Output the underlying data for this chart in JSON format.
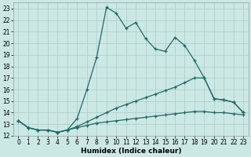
{
  "xlabel": "Humidex (Indice chaleur)",
  "bg_color": "#cce8e5",
  "grid_color": "#b0d0cd",
  "line_color": "#1e6b65",
  "xlim": [
    -0.5,
    23.5
  ],
  "ylim": [
    12,
    23.5
  ],
  "xticks": [
    0,
    1,
    2,
    3,
    4,
    5,
    6,
    7,
    8,
    9,
    10,
    11,
    12,
    13,
    14,
    15,
    16,
    17,
    18,
    19,
    20,
    21,
    22,
    23
  ],
  "yticks": [
    12,
    13,
    14,
    15,
    16,
    17,
    18,
    19,
    20,
    21,
    22,
    23
  ],
  "line1_x": [
    0,
    1,
    2,
    3,
    4,
    5,
    6,
    7,
    8,
    9,
    10,
    11,
    12,
    13,
    14,
    15,
    16,
    17,
    18,
    19,
    20,
    21,
    22,
    23
  ],
  "line1_y": [
    13.3,
    12.7,
    12.5,
    12.5,
    12.3,
    12.5,
    13.5,
    16.0,
    18.8,
    23.1,
    22.6,
    21.3,
    21.8,
    20.4,
    19.5,
    19.3,
    20.5,
    19.8,
    18.5,
    17.0,
    15.2,
    15.1,
    14.9,
    14.0
  ],
  "line2_x": [
    0,
    1,
    2,
    3,
    4,
    5,
    6,
    7,
    8,
    9,
    10,
    11,
    12,
    13,
    14,
    15,
    16,
    17,
    18,
    19,
    20,
    21,
    22,
    23
  ],
  "line2_y": [
    13.3,
    12.7,
    12.5,
    12.5,
    12.3,
    12.5,
    12.8,
    13.2,
    13.6,
    14.0,
    14.4,
    14.7,
    15.0,
    15.3,
    15.6,
    15.9,
    16.2,
    16.6,
    17.0,
    17.0,
    15.2,
    15.1,
    14.9,
    14.0
  ],
  "line3_x": [
    0,
    1,
    2,
    3,
    4,
    5,
    6,
    7,
    8,
    9,
    10,
    11,
    12,
    13,
    14,
    15,
    16,
    17,
    18,
    19,
    20,
    21,
    22,
    23
  ],
  "line3_y": [
    13.3,
    12.7,
    12.5,
    12.5,
    12.3,
    12.5,
    12.7,
    12.9,
    13.1,
    13.2,
    13.3,
    13.4,
    13.5,
    13.6,
    13.7,
    13.8,
    13.9,
    14.0,
    14.1,
    14.1,
    14.0,
    14.0,
    13.9,
    13.8
  ]
}
